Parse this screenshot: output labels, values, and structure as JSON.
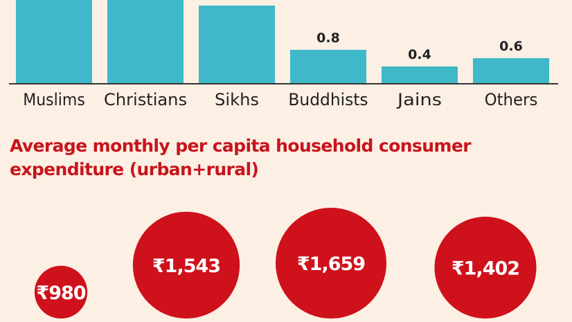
{
  "colors": {
    "bar": "#3fb8c9",
    "bubble": "#cf111b",
    "title": "#c8141c",
    "text": "#222222",
    "axis": "#333333",
    "background": "#fcefe4"
  },
  "section_title": "Average monthly per capita household consumer expenditure (urban+rural)",
  "chart_data": [
    {
      "type": "bar",
      "categories": [
        "Muslims",
        "Christians",
        "Sikhs",
        "Buddhists",
        "Jains",
        "Others"
      ],
      "values": [
        null,
        null,
        null,
        0.8,
        0.4,
        0.6
      ],
      "data_labels": [
        "",
        "",
        "",
        "0.8",
        "0.4",
        "0.6"
      ],
      "title": "",
      "xlabel": "",
      "ylabel": "",
      "grid": false,
      "legend": "none"
    },
    {
      "type": "scatter",
      "style": "bubble",
      "values": [
        980,
        1543,
        1659,
        1402
      ],
      "data_labels": [
        "₹980",
        "₹1,543",
        "₹1,659",
        "₹1,402"
      ],
      "title": "",
      "grid": false,
      "legend": "none"
    }
  ]
}
